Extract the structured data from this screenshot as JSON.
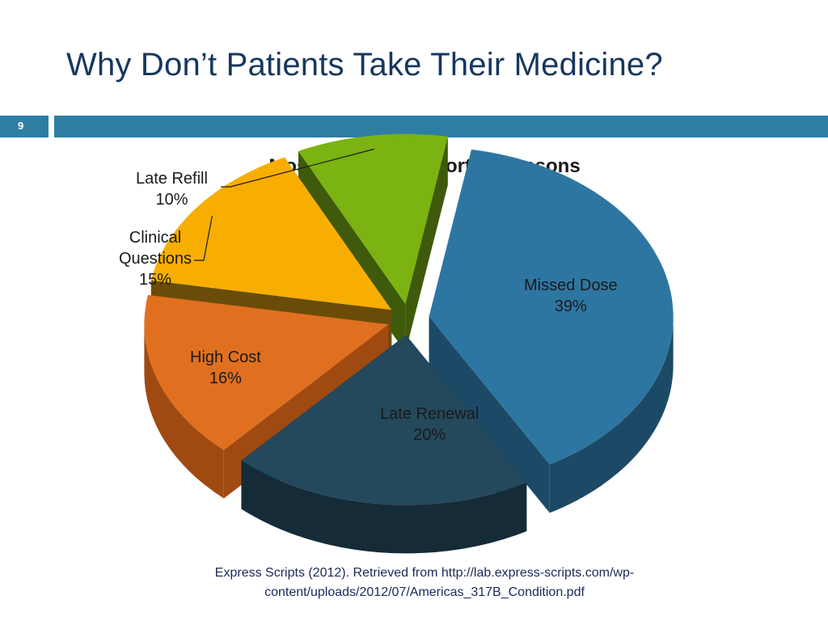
{
  "slide": {
    "title": "Why Don’t Patients Take Their Medicine?",
    "number": "9",
    "accent_color": "#2e7ea4"
  },
  "source": {
    "line1": "Express Scripts (2012). Retrieved from http://lab.express-scripts.com/wp-",
    "line2": "content/uploads/2012/07/Americas_317B_Condition.pdf"
  },
  "chart_data": {
    "type": "pie",
    "title": "Most Common Reported Reasons",
    "slices": [
      {
        "name": "Missed Dose",
        "value": 39,
        "pct_label": "39%",
        "color": "#2e76a2",
        "side_color": "#1c4a66"
      },
      {
        "name": "Late Renewal",
        "value": 20,
        "pct_label": "20%",
        "color": "#24485c",
        "side_color": "#152b38"
      },
      {
        "name": "High Cost",
        "value": 16,
        "pct_label": "16%",
        "color": "#e07020",
        "side_color": "#a04a12"
      },
      {
        "name": "Clinical Questions",
        "value": 15,
        "pct_label": "15%",
        "color": "#f7ae00",
        "side_color": "#6a4c08"
      },
      {
        "name": "Late Refill",
        "value": 10,
        "pct_label": "10%",
        "color": "#7ab312",
        "side_color": "#3e5a0a"
      }
    ],
    "legend": "none"
  }
}
